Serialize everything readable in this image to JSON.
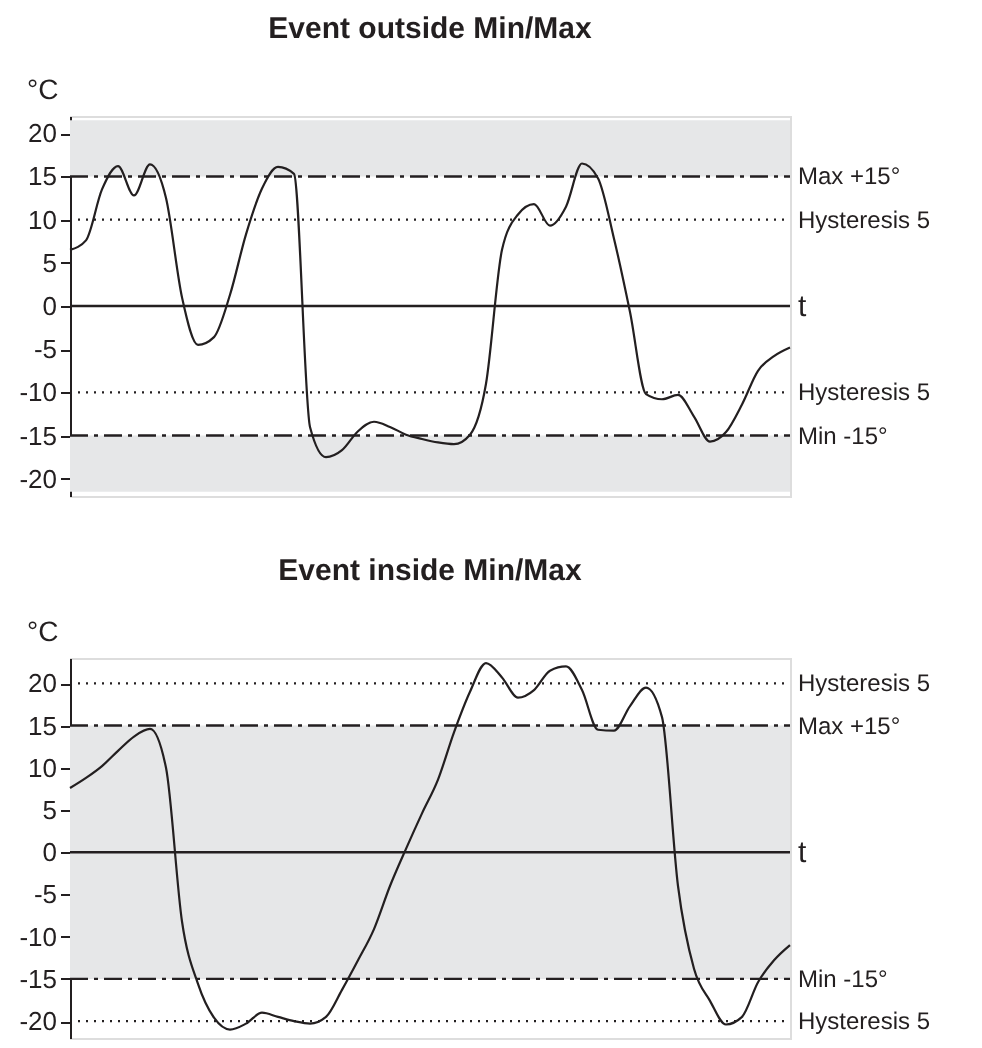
{
  "chart_data": [
    {
      "type": "line",
      "title": "Event outside Min/Max",
      "ylabel": "°C",
      "xlabel": "t",
      "categories": [
        null,
        null,
        null,
        null,
        null,
        null,
        null,
        null,
        null,
        null,
        null,
        null,
        null,
        null,
        null,
        null,
        null,
        null,
        null,
        null,
        null,
        null,
        null,
        null,
        null,
        null,
        null,
        null,
        null,
        null,
        null,
        null,
        null,
        null,
        null,
        null,
        null,
        null,
        null,
        null,
        null,
        null,
        null,
        null,
        null,
        null
      ],
      "series": [
        {
          "color": "#231f20",
          "values": [
            6.5,
            7.6,
            13.5,
            16.2,
            12.8,
            16.4,
            12.5,
            1,
            -4.5,
            -3.6,
            1.3,
            8.3,
            13.6,
            16.1,
            15.3,
            -14,
            -17.5,
            -16.7,
            -14.5,
            -13.4,
            -14,
            -14.9,
            -15.4,
            -15.8,
            -16,
            -14.9,
            -9,
            6.5,
            10.6,
            11.8,
            9.3,
            11.5,
            16.5,
            14.8,
            7.8,
            -0.7,
            -10.2,
            -10.8,
            -10.3,
            -12.8,
            -15.7,
            -14.6,
            -11.4,
            -7.5,
            -5.8,
            -4.8
          ]
        }
      ],
      "ylim": [
        -22,
        22
      ],
      "yticks": [
        -20,
        -15,
        -10,
        -5,
        0,
        5,
        10,
        15,
        20
      ],
      "bands": [
        {
          "axis": "y",
          "from": 15,
          "to": 21.5,
          "label": null,
          "color": "#e6e7e8"
        },
        {
          "axis": "y",
          "from": -21.5,
          "to": -15,
          "label": null,
          "color": "#e6e7e8"
        }
      ],
      "ref_lines": [
        {
          "axis": "y",
          "value": 15,
          "label": "Max +15°",
          "line_style": "dashdot",
          "color": "#231f20"
        },
        {
          "axis": "y",
          "value": 10,
          "label": "Hysteresis 5",
          "line_style": "dotted",
          "color": "#231f20"
        },
        {
          "axis": "y",
          "value": 0,
          "label": null,
          "line_style": "solid",
          "color": "#231f20"
        },
        {
          "axis": "y",
          "value": -10,
          "label": "Hysteresis 5",
          "line_style": "dotted",
          "color": "#231f20"
        },
        {
          "axis": "y",
          "value": -15,
          "label": "Min -15°",
          "line_style": "dashdot",
          "color": "#231f20"
        }
      ],
      "tick_labels": "y",
      "grid": false,
      "marker": "none",
      "line_style": "solid"
    },
    {
      "type": "line",
      "title": "Event inside Min/Max",
      "ylabel": "°C",
      "xlabel": "t",
      "categories": [
        null,
        null,
        null,
        null,
        null,
        null,
        null,
        null,
        null,
        null,
        null,
        null,
        null,
        null,
        null,
        null,
        null,
        null,
        null,
        null,
        null,
        null,
        null,
        null,
        null,
        null,
        null,
        null,
        null,
        null,
        null,
        null,
        null,
        null,
        null,
        null,
        null,
        null,
        null,
        null,
        null,
        null,
        null,
        null,
        null,
        null
      ],
      "series": [
        {
          "color": "#231f20",
          "values": [
            7.6,
            8.8,
            10.2,
            12,
            13.7,
            14.6,
            10,
            -8.2,
            -15.6,
            -19.6,
            -21,
            -20.3,
            -19,
            -19.5,
            -20,
            -20.3,
            -19.5,
            -16.3,
            -12.8,
            -9.1,
            -4,
            0.4,
            4.6,
            8.6,
            14.2,
            19,
            22.4,
            20.7,
            18.3,
            19.2,
            21.5,
            22,
            19.2,
            14.5,
            14.4,
            17.3,
            19.5,
            16,
            -4,
            -13.8,
            -17.6,
            -20.4,
            -19.5,
            -15.4,
            -12.8,
            -11
          ]
        }
      ],
      "ylim": [
        -22,
        23
      ],
      "yticks": [
        -20,
        -15,
        -10,
        -5,
        0,
        5,
        10,
        15,
        20
      ],
      "bands": [
        {
          "axis": "y",
          "from": -15,
          "to": 15,
          "label": null,
          "color": "#e6e7e8"
        }
      ],
      "ref_lines": [
        {
          "axis": "y",
          "value": 20,
          "label": "Hysteresis 5",
          "line_style": "dotted",
          "color": "#231f20"
        },
        {
          "axis": "y",
          "value": 15,
          "label": "Max +15°",
          "line_style": "dashdot",
          "color": "#231f20"
        },
        {
          "axis": "y",
          "value": 0,
          "label": null,
          "line_style": "solid",
          "color": "#231f20"
        },
        {
          "axis": "y",
          "value": -15,
          "label": "Min -15°",
          "line_style": "dashdot",
          "color": "#231f20"
        },
        {
          "axis": "y",
          "value": -20,
          "label": "Hysteresis 5",
          "line_style": "dotted",
          "color": "#231f20"
        }
      ],
      "tick_labels": "y",
      "grid": false,
      "marker": "none",
      "line_style": "solid"
    }
  ]
}
